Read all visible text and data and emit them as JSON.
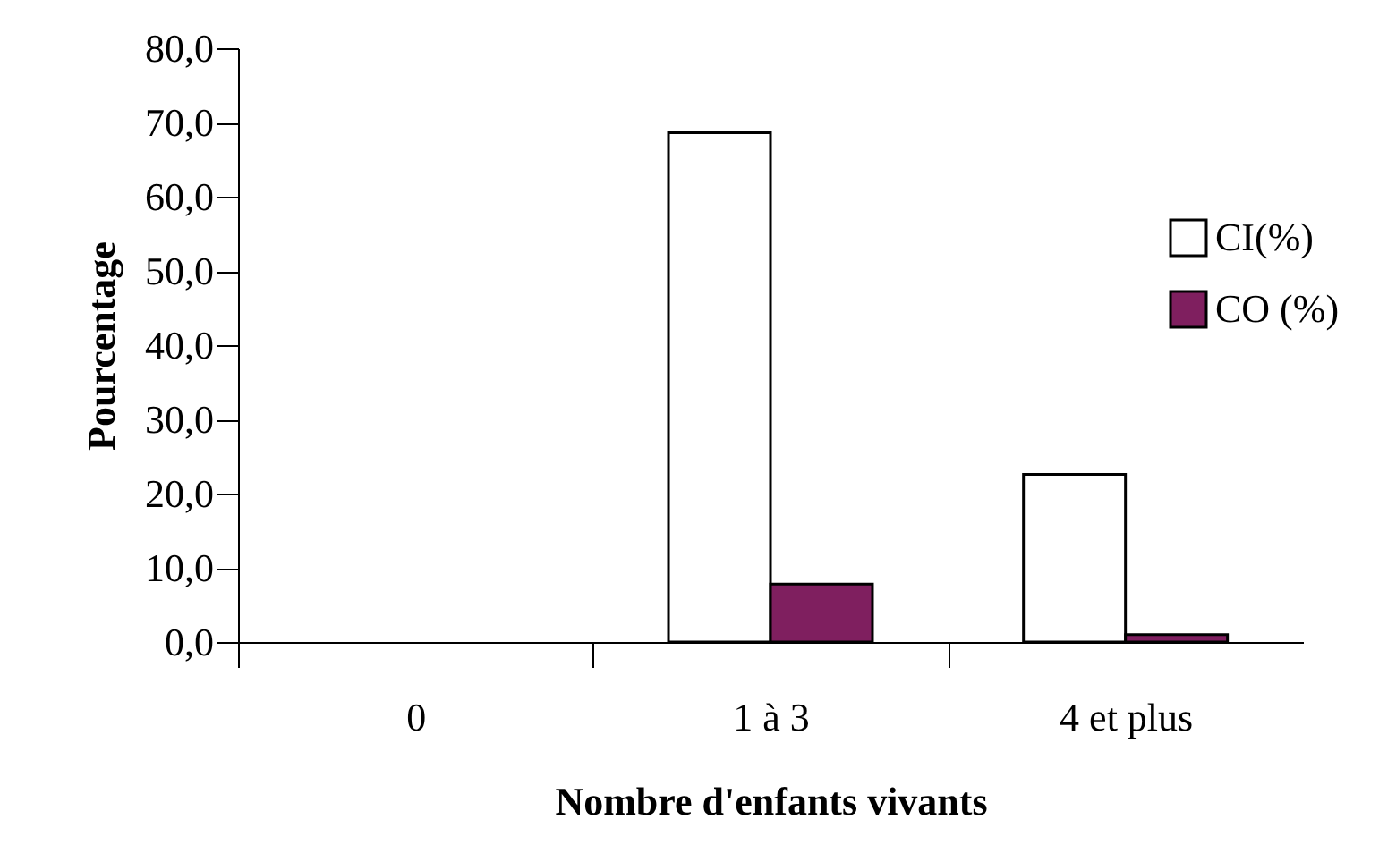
{
  "chart_data": {
    "type": "bar",
    "xlabel": "Nombre d'enfants vivants",
    "ylabel": "Pourcentage",
    "categories": [
      "0",
      "1 à 3",
      "4 et plus"
    ],
    "series": [
      {
        "name": "CI(%)",
        "color": "#ffffff",
        "values": [
          null,
          68.6,
          22.6
        ]
      },
      {
        "name": "CO (%)",
        "color": "#7f1f5f",
        "values": [
          null,
          7.8,
          1.0
        ]
      }
    ],
    "ylim": [
      0,
      80
    ],
    "yticks": [
      {
        "value": 0,
        "label": "0,0"
      },
      {
        "value": 10,
        "label": "10,0"
      },
      {
        "value": 20,
        "label": "20,0"
      },
      {
        "value": 30,
        "label": "30,0"
      },
      {
        "value": 40,
        "label": "40,0"
      },
      {
        "value": 50,
        "label": "50,0"
      },
      {
        "value": 60,
        "label": "60,0"
      },
      {
        "value": 70,
        "label": "70,0"
      },
      {
        "value": 80,
        "label": "80,0"
      }
    ],
    "grid": false,
    "legend": "right"
  }
}
